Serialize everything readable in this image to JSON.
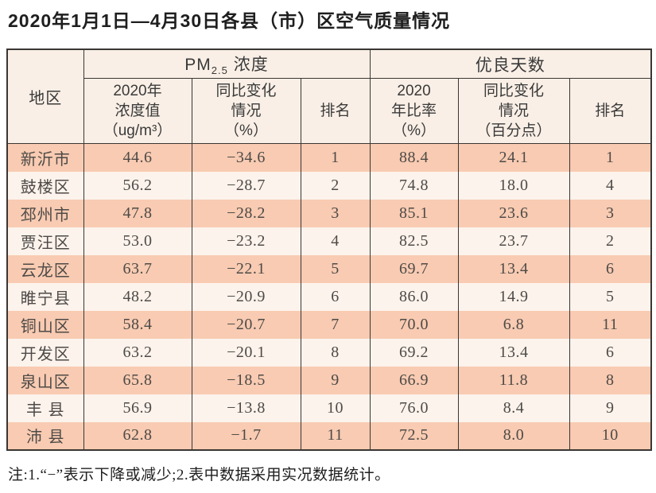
{
  "title": "2020年1月1日—4月30日各县（市）区空气质量情况",
  "table": {
    "col_region": "地区",
    "group_pm25": {
      "prefix": "PM",
      "sub": "2.5",
      "suffix": " 浓度"
    },
    "group_good_days": "优良天数",
    "sub_headers": [
      "2020年\n浓度值\n（ug/m³）",
      "同比变化\n情况\n（%）",
      "排名",
      "2020\n年比率\n（%）",
      "同比变化\n情况\n（百分点）",
      "排名"
    ],
    "rows": [
      {
        "region": "新沂市",
        "pm_value": "44.6",
        "pm_change": "−34.6",
        "pm_rank": "1",
        "good_ratio": "88.4",
        "good_change": "24.1",
        "good_rank": "1"
      },
      {
        "region": "鼓楼区",
        "pm_value": "56.2",
        "pm_change": "−28.7",
        "pm_rank": "2",
        "good_ratio": "74.8",
        "good_change": "18.0",
        "good_rank": "4"
      },
      {
        "region": "邳州市",
        "pm_value": "47.8",
        "pm_change": "−28.2",
        "pm_rank": "3",
        "good_ratio": "85.1",
        "good_change": "23.6",
        "good_rank": "3"
      },
      {
        "region": "贾汪区",
        "pm_value": "53.0",
        "pm_change": "−23.2",
        "pm_rank": "4",
        "good_ratio": "82.5",
        "good_change": "23.7",
        "good_rank": "2"
      },
      {
        "region": "云龙区",
        "pm_value": "63.7",
        "pm_change": "−22.1",
        "pm_rank": "5",
        "good_ratio": "69.7",
        "good_change": "13.4",
        "good_rank": "6"
      },
      {
        "region": "睢宁县",
        "pm_value": "48.2",
        "pm_change": "−20.9",
        "pm_rank": "6",
        "good_ratio": "86.0",
        "good_change": "14.9",
        "good_rank": "5"
      },
      {
        "region": "铜山区",
        "pm_value": "58.4",
        "pm_change": "−20.7",
        "pm_rank": "7",
        "good_ratio": "70.0",
        "good_change": "6.8",
        "good_rank": "11"
      },
      {
        "region": "开发区",
        "pm_value": "63.2",
        "pm_change": "−20.1",
        "pm_rank": "8",
        "good_ratio": "69.2",
        "good_change": "13.4",
        "good_rank": "6"
      },
      {
        "region": "泉山区",
        "pm_value": "65.8",
        "pm_change": "−18.5",
        "pm_rank": "9",
        "good_ratio": "66.9",
        "good_change": "11.8",
        "good_rank": "8"
      },
      {
        "region": "丰 县",
        "pm_value": "56.9",
        "pm_change": "−13.8",
        "pm_rank": "10",
        "good_ratio": "76.0",
        "good_change": "8.4",
        "good_rank": "9"
      },
      {
        "region": "沛 县",
        "pm_value": "62.8",
        "pm_change": "−1.7",
        "pm_rank": "11",
        "good_ratio": "72.5",
        "good_change": "8.0",
        "good_rank": "10"
      }
    ]
  },
  "footnote": "注:1.“−”表示下降或减少;2.表中数据采用实况数据统计。",
  "colors": {
    "row_salmon": "#f8cbb2",
    "row_light": "#fcf3ec",
    "header_bg": "#f9efe6",
    "border": "#3a3633",
    "text": "#4e4a47"
  },
  "chart_data": {
    "type": "table",
    "title": "2020年1月1日—4月30日各县（市）区空气质量情况",
    "column_groups": [
      "PM2.5 浓度",
      "优良天数"
    ],
    "columns": [
      "地区",
      "2020年浓度值（ug/m³）",
      "同比变化情况（%）",
      "排名",
      "2020年比率（%）",
      "同比变化情况（百分点）",
      "排名"
    ],
    "rows": [
      [
        "新沂市",
        44.6,
        -34.6,
        1,
        88.4,
        24.1,
        1
      ],
      [
        "鼓楼区",
        56.2,
        -28.7,
        2,
        74.8,
        18.0,
        4
      ],
      [
        "邳州市",
        47.8,
        -28.2,
        3,
        85.1,
        23.6,
        3
      ],
      [
        "贾汪区",
        53.0,
        -23.2,
        4,
        82.5,
        23.7,
        2
      ],
      [
        "云龙区",
        63.7,
        -22.1,
        5,
        69.7,
        13.4,
        6
      ],
      [
        "睢宁县",
        48.2,
        -20.9,
        6,
        86.0,
        14.9,
        5
      ],
      [
        "铜山区",
        58.4,
        -20.7,
        7,
        70.0,
        6.8,
        11
      ],
      [
        "开发区",
        63.2,
        -20.1,
        8,
        69.2,
        13.4,
        6
      ],
      [
        "泉山区",
        65.8,
        -18.5,
        9,
        66.9,
        11.8,
        8
      ],
      [
        "丰县",
        56.9,
        -13.8,
        10,
        76.0,
        8.4,
        9
      ],
      [
        "沛县",
        62.8,
        -1.7,
        11,
        72.5,
        8.0,
        10
      ]
    ],
    "footnote": "注:1.“−”表示下降或减少;2.表中数据采用实况数据统计。"
  }
}
